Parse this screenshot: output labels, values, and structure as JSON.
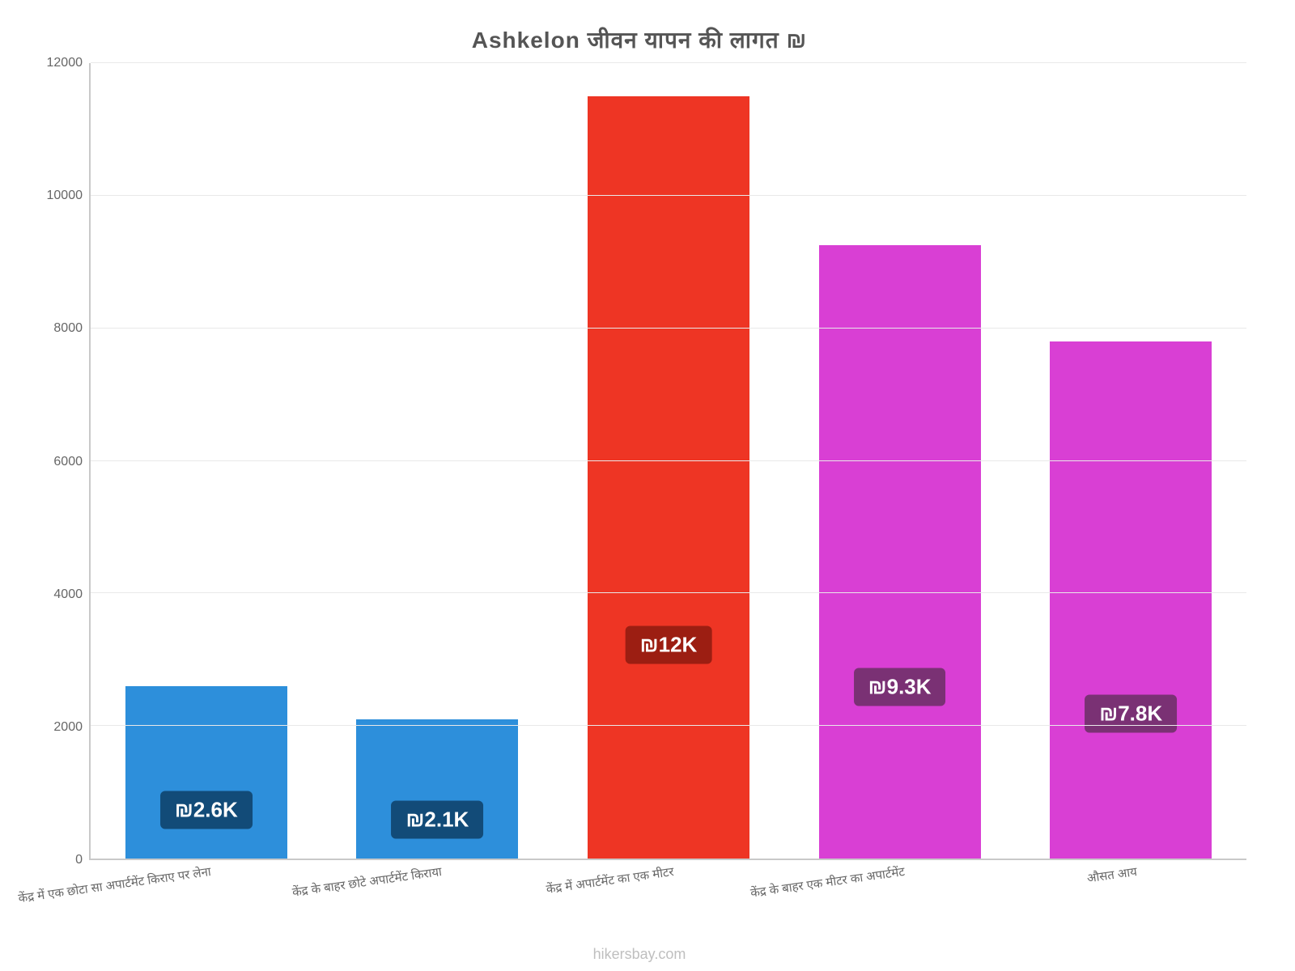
{
  "title": "Ashkelon जीवन    यापन    की    लागत    ₪",
  "title_fontsize": 28,
  "title_color": "#555555",
  "footer": "hikersbay.com",
  "footer_fontsize": 18,
  "footer_color": "#bfbfbf",
  "chart": {
    "type": "bar",
    "ylim_min": 0,
    "ylim_max": 12000,
    "ytick_step": 2000,
    "yticks": [
      0,
      2000,
      4000,
      6000,
      8000,
      10000,
      12000
    ],
    "axis_color": "#c9c9c9",
    "grid_color": "#e9e9e9",
    "tick_label_color": "#666666",
    "tick_label_fontsize": 16,
    "x_label_fontsize": 15,
    "x_label_color": "#666666",
    "x_label_rotation_deg": -8,
    "bar_width_ratio": 0.7,
    "background_color": "#ffffff",
    "badge_fontsize": 26,
    "badge_text_color": "#ffffff",
    "badge_vertical_pos_ratio": 0.28,
    "bars": [
      {
        "category": "केंद्र में एक छोटा सा अपार्टमेंट किराए पर लेना",
        "value": 2600,
        "display_label": "₪2.6K",
        "bar_color": "#2d8fdb",
        "badge_color": "#124b78"
      },
      {
        "category": "केंद्र के बाहर छोटे अपार्टमेंट किराया",
        "value": 2100,
        "display_label": "₪2.1K",
        "bar_color": "#2d8fdb",
        "badge_color": "#124b78"
      },
      {
        "category": "केंद्र में अपार्टमेंट का एक मीटर",
        "value": 11500,
        "display_label": "₪12K",
        "bar_color": "#ee3524",
        "badge_color": "#9c1e12"
      },
      {
        "category": "केंद्र के बाहर एक मीटर का अपार्टमेंट",
        "value": 9250,
        "display_label": "₪9.3K",
        "bar_color": "#d93fd4",
        "badge_color": "#7a3174"
      },
      {
        "category": "औसत आय",
        "value": 7800,
        "display_label": "₪7.8K",
        "bar_color": "#d93fd4",
        "badge_color": "#7a3174"
      }
    ]
  }
}
